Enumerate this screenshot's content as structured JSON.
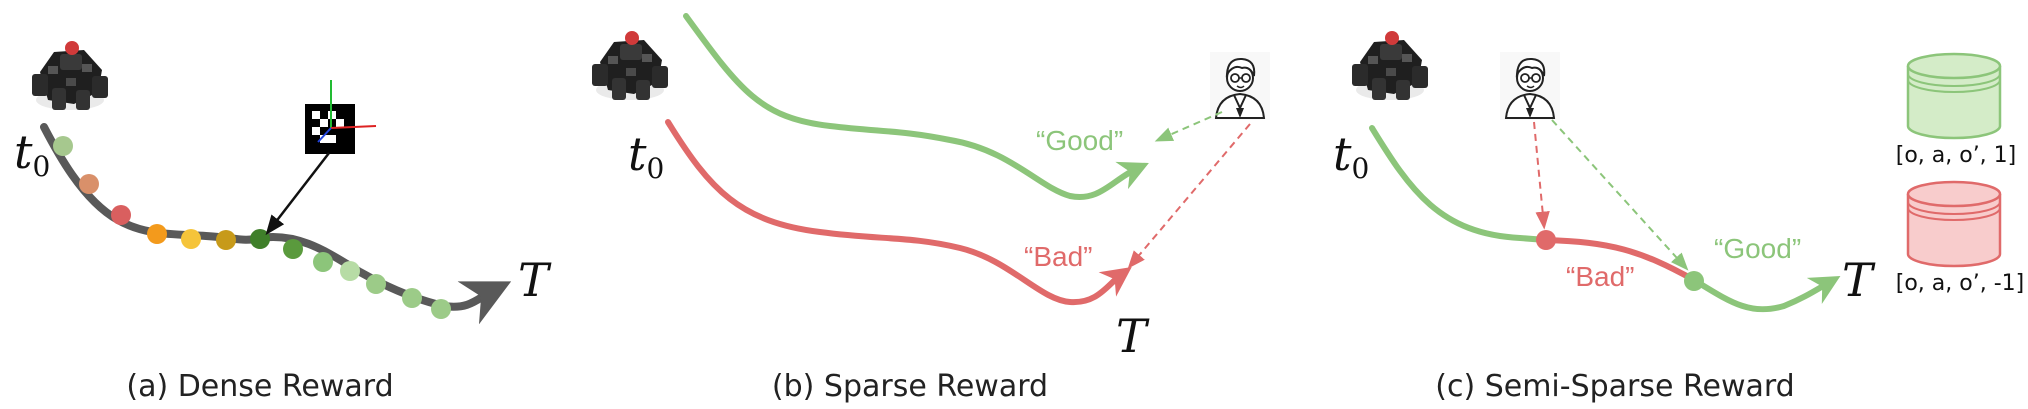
{
  "panels": {
    "a": {
      "caption": "(a) Dense Reward",
      "start": "t",
      "start_sub": "0",
      "end": "T"
    },
    "b": {
      "caption": "(b) Sparse Reward",
      "start": "t",
      "start_sub": "0",
      "end": "T",
      "good": "“Good”",
      "bad": "“Bad”"
    },
    "c": {
      "caption": "(c) Semi-Sparse Reward",
      "start": "t",
      "start_sub": "0",
      "end": "T",
      "good": "“Good”",
      "bad": "“Bad”",
      "buffer_good": "[o, a, o’, 1]",
      "buffer_bad": "[o, a, o’, -1]"
    }
  },
  "colors": {
    "good": "#8cc57a",
    "bad": "#e06a6a",
    "path": "#595959",
    "buffer_good_fill": "#d4ecc8",
    "buffer_bad_fill": "#f8cccc"
  }
}
